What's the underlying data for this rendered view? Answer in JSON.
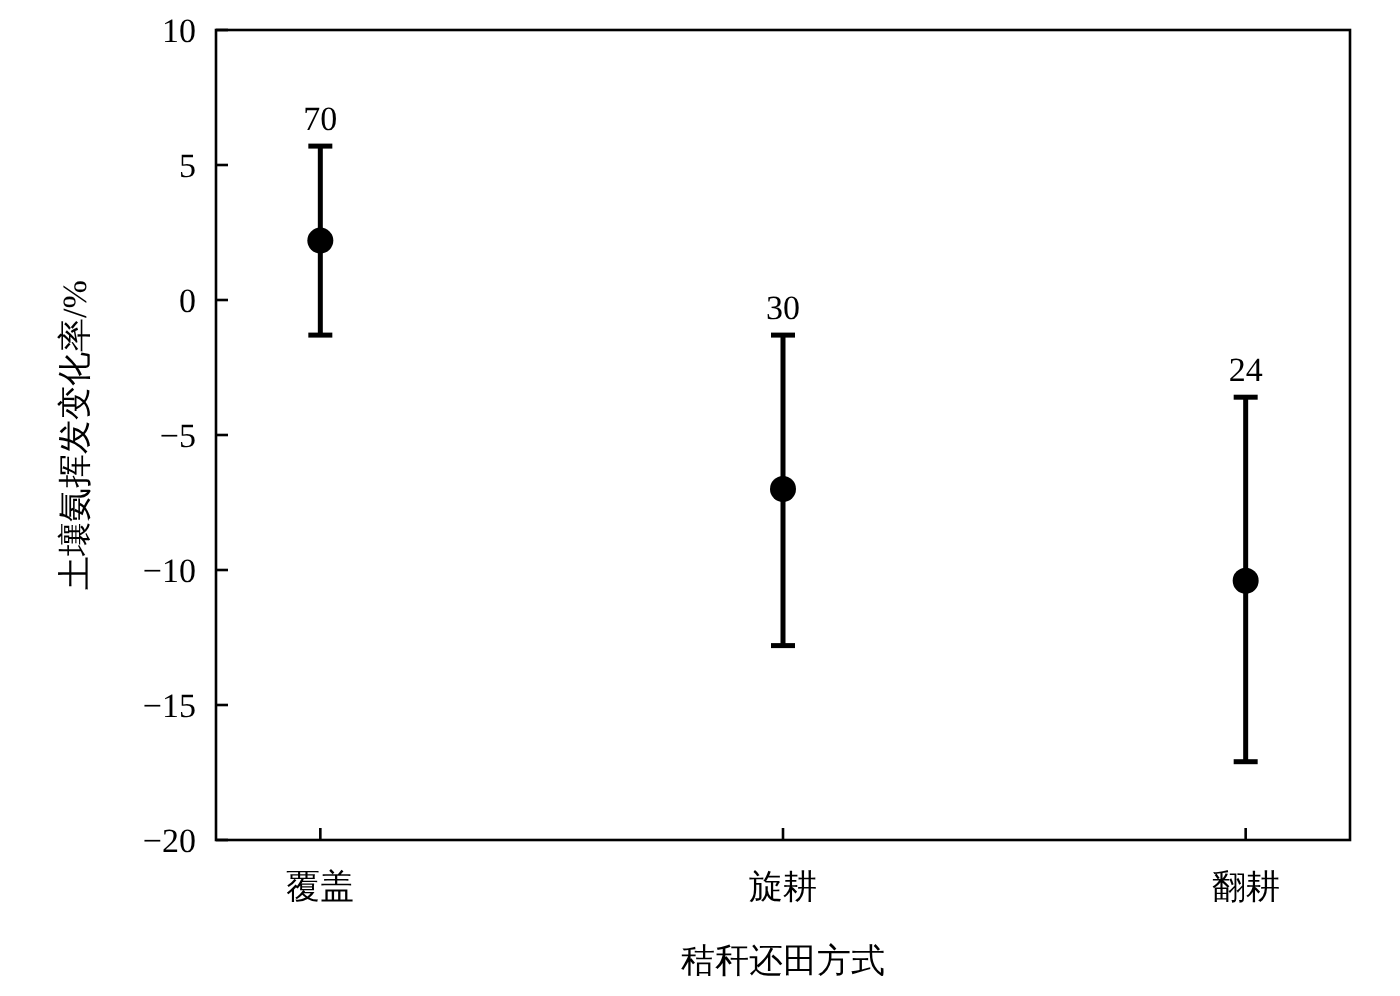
{
  "chart_data": {
    "type": "scatter",
    "xlabel": "秸秆还田方式",
    "ylabel": "土壤氨挥发变化率/%",
    "categories": [
      "覆盖",
      "旋耕",
      "翻耕"
    ],
    "values": [
      2.2,
      -7.0,
      -10.4
    ],
    "errors": [
      [
        -1.3,
        5.7
      ],
      [
        -12.8,
        -1.3
      ],
      [
        -17.1,
        -3.6
      ]
    ],
    "color": "#000000",
    "marker": "circle",
    "ylim": [
      -20,
      10
    ],
    "yticks": [
      -20,
      -15,
      -10,
      -5,
      0,
      5,
      10
    ],
    "annotations": [
      {
        "text": "70",
        "x": "覆盖",
        "y": 5.7
      },
      {
        "text": "30",
        "x": "旋耕",
        "y": -1.3
      },
      {
        "text": "24",
        "x": "翻耕",
        "y": -3.6
      }
    ]
  }
}
